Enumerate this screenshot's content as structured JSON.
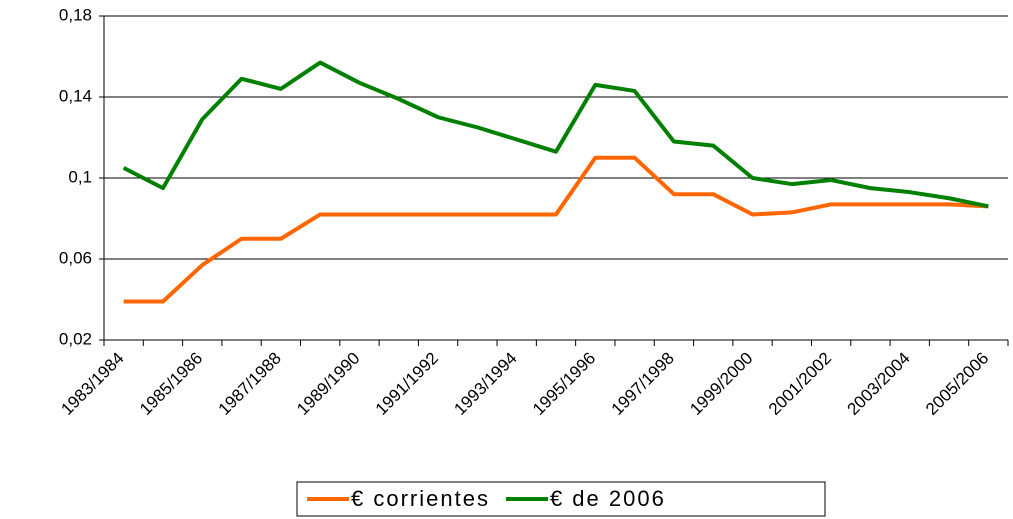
{
  "chart_data": {
    "type": "line",
    "categories": [
      "1983/1984",
      null,
      "1985/1986",
      null,
      "1987/1988",
      null,
      "1989/1990",
      null,
      "1991/1992",
      null,
      "1993/1994",
      null,
      "1995/1996",
      null,
      "1997/1998",
      null,
      "1999/2000",
      null,
      "2001/2002",
      null,
      "2003/2004",
      null,
      "2005/2006"
    ],
    "series": [
      {
        "name": "€ corrientes",
        "color": "#ff6600",
        "values": [
          0.039,
          0.039,
          0.057,
          0.07,
          0.07,
          0.082,
          0.082,
          0.082,
          0.082,
          0.082,
          0.082,
          0.082,
          0.11,
          0.11,
          0.092,
          0.092,
          0.082,
          0.083,
          0.087,
          0.087,
          0.087,
          0.087,
          0.086
        ]
      },
      {
        "name": "€ de 2006",
        "color": "#008000",
        "values": [
          0.105,
          0.095,
          0.129,
          0.149,
          0.144,
          0.157,
          0.147,
          0.139,
          0.13,
          0.125,
          0.119,
          0.113,
          0.146,
          0.143,
          0.118,
          0.116,
          0.1,
          0.097,
          0.099,
          0.095,
          0.093,
          0.09,
          0.086
        ]
      }
    ],
    "ylim": [
      0.02,
      0.18
    ],
    "yticks": [
      {
        "value": 0.02,
        "label": "0,02"
      },
      {
        "value": 0.06,
        "label": "0,06"
      },
      {
        "value": 0.1,
        "label": "0,1"
      },
      {
        "value": 0.14,
        "label": "0,14"
      },
      {
        "value": 0.18,
        "label": "0,18"
      }
    ],
    "grid": true,
    "legend": "bottom"
  }
}
